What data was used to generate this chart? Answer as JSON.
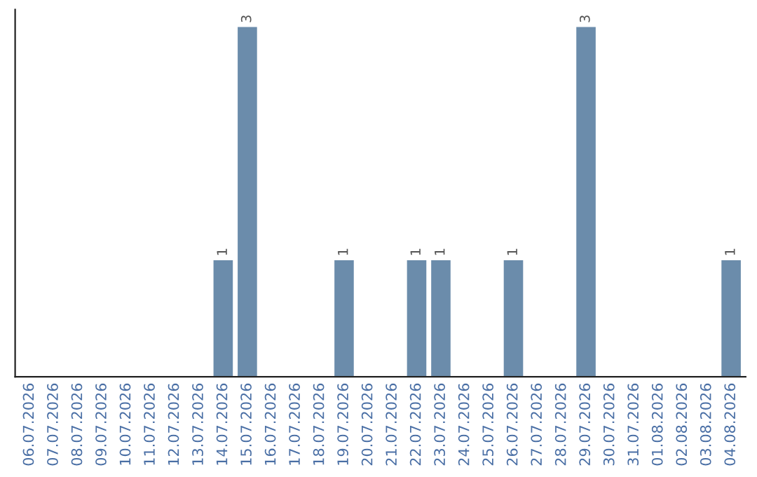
{
  "chart_data": {
    "type": "bar",
    "categories": [
      "06.07.2026",
      "07.07.2026",
      "08.07.2026",
      "09.07.2026",
      "10.07.2026",
      "11.07.2026",
      "12.07.2026",
      "13.07.2026",
      "14.07.2026",
      "15.07.2026",
      "16.07.2026",
      "17.07.2026",
      "18.07.2026",
      "19.07.2026",
      "20.07.2026",
      "21.07.2026",
      "22.07.2026",
      "23.07.2026",
      "24.07.2026",
      "25.07.2026",
      "26.07.2026",
      "27.07.2026",
      "28.07.2026",
      "29.07.2026",
      "30.07.2026",
      "31.07.2026",
      "01.08.2026",
      "02.08.2026",
      "03.08.2026",
      "04.08.2026"
    ],
    "values": [
      0,
      0,
      0,
      0,
      0,
      0,
      0,
      0,
      1,
      3,
      0,
      0,
      0,
      1,
      0,
      0,
      1,
      1,
      0,
      0,
      1,
      0,
      0,
      3,
      0,
      0,
      0,
      0,
      0,
      1
    ],
    "value_labels": [
      null,
      null,
      null,
      null,
      null,
      null,
      null,
      null,
      "1",
      "3",
      null,
      null,
      null,
      "1",
      null,
      null,
      "1",
      "1",
      null,
      null,
      "1",
      null,
      null,
      "3",
      null,
      null,
      null,
      null,
      null,
      "1"
    ],
    "color": "#6b8cab",
    "grid": false,
    "legend": false,
    "tick_labels": "x"
  }
}
